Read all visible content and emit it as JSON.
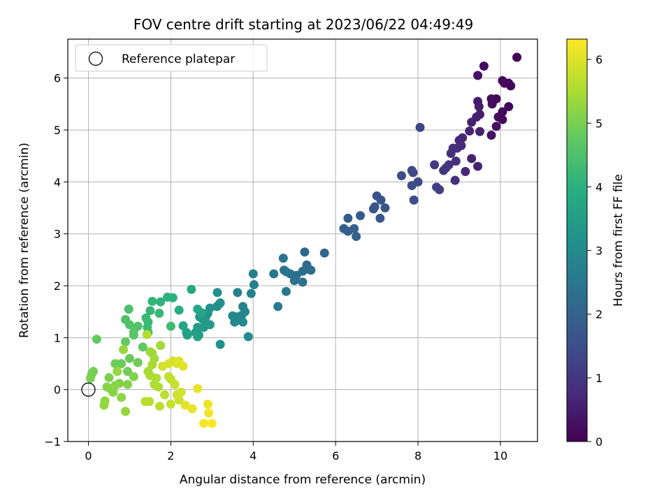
{
  "chart_data": {
    "type": "scatter",
    "title": "FOV centre drift starting at 2023/06/22 04:49:49",
    "xlabel": "Angular distance from reference (arcmin)",
    "ylabel": "Rotation from reference (arcmin)",
    "xlim": [
      -0.5,
      10.9
    ],
    "ylim": [
      -1.0,
      6.75
    ],
    "xticks": [
      0,
      2,
      4,
      6,
      8,
      10
    ],
    "yticks": [
      -1,
      0,
      1,
      2,
      3,
      4,
      5,
      6
    ],
    "grid": true,
    "legend": {
      "position": "top-left",
      "entries": [
        "Reference platepar"
      ]
    },
    "reference_point": {
      "x": 0,
      "y": 0
    },
    "colorbar": {
      "label": "Hours from first FF file",
      "colormap": "viridis",
      "range": [
        0,
        6.32
      ],
      "ticks": [
        0,
        1,
        2,
        3,
        4,
        5,
        6
      ]
    },
    "points": [
      {
        "x": 10.4,
        "y": 6.4,
        "c": 0.05
      },
      {
        "x": 10.2,
        "y": 5.9,
        "c": 0.1
      },
      {
        "x": 10.25,
        "y": 5.85,
        "c": 0.1
      },
      {
        "x": 10.05,
        "y": 5.95,
        "c": 0.1
      },
      {
        "x": 10.1,
        "y": 5.9,
        "c": 0.15
      },
      {
        "x": 9.6,
        "y": 6.23,
        "c": 0.2
      },
      {
        "x": 9.45,
        "y": 6.05,
        "c": 0.3
      },
      {
        "x": 9.9,
        "y": 5.6,
        "c": 0.15
      },
      {
        "x": 9.78,
        "y": 5.6,
        "c": 0.2
      },
      {
        "x": 9.8,
        "y": 5.5,
        "c": 0.2
      },
      {
        "x": 10.2,
        "y": 5.45,
        "c": 0.1
      },
      {
        "x": 10.05,
        "y": 5.35,
        "c": 0.15
      },
      {
        "x": 9.95,
        "y": 5.25,
        "c": 0.2
      },
      {
        "x": 10.05,
        "y": 5.2,
        "c": 0.15
      },
      {
        "x": 9.9,
        "y": 5.07,
        "c": 0.25
      },
      {
        "x": 9.78,
        "y": 4.9,
        "c": 0.3
      },
      {
        "x": 9.45,
        "y": 5.55,
        "c": 0.5
      },
      {
        "x": 9.48,
        "y": 5.45,
        "c": 0.5
      },
      {
        "x": 9.5,
        "y": 5.3,
        "c": 0.55
      },
      {
        "x": 9.42,
        "y": 5.25,
        "c": 0.55
      },
      {
        "x": 9.3,
        "y": 5.15,
        "c": 0.6
      },
      {
        "x": 9.5,
        "y": 4.97,
        "c": 0.6
      },
      {
        "x": 9.25,
        "y": 4.98,
        "c": 0.65
      },
      {
        "x": 9.08,
        "y": 4.85,
        "c": 0.7
      },
      {
        "x": 9.0,
        "y": 4.8,
        "c": 0.7
      },
      {
        "x": 9.05,
        "y": 4.7,
        "c": 0.75
      },
      {
        "x": 8.95,
        "y": 4.65,
        "c": 0.8
      },
      {
        "x": 8.85,
        "y": 4.65,
        "c": 0.85
      },
      {
        "x": 8.8,
        "y": 4.55,
        "c": 0.85
      },
      {
        "x": 8.92,
        "y": 4.4,
        "c": 0.9
      },
      {
        "x": 8.9,
        "y": 4.03,
        "c": 0.9
      },
      {
        "x": 8.75,
        "y": 4.33,
        "c": 0.95
      },
      {
        "x": 8.68,
        "y": 4.27,
        "c": 1.0
      },
      {
        "x": 8.62,
        "y": 4.22,
        "c": 1.0
      },
      {
        "x": 9.3,
        "y": 4.45,
        "c": 0.6
      },
      {
        "x": 9.45,
        "y": 4.3,
        "c": 0.65
      },
      {
        "x": 9.15,
        "y": 4.2,
        "c": 0.7
      },
      {
        "x": 8.4,
        "y": 4.33,
        "c": 1.1
      },
      {
        "x": 8.45,
        "y": 3.9,
        "c": 1.2
      },
      {
        "x": 8.52,
        "y": 3.85,
        "c": 1.2
      },
      {
        "x": 8.05,
        "y": 5.05,
        "c": 1.3
      },
      {
        "x": 7.85,
        "y": 4.22,
        "c": 1.4
      },
      {
        "x": 7.88,
        "y": 4.18,
        "c": 1.4
      },
      {
        "x": 7.6,
        "y": 4.12,
        "c": 1.45
      },
      {
        "x": 8.0,
        "y": 4.0,
        "c": 1.4
      },
      {
        "x": 7.85,
        "y": 3.93,
        "c": 1.45
      },
      {
        "x": 7.9,
        "y": 3.65,
        "c": 1.5
      },
      {
        "x": 7.0,
        "y": 3.73,
        "c": 1.6
      },
      {
        "x": 7.1,
        "y": 3.65,
        "c": 1.65
      },
      {
        "x": 6.95,
        "y": 3.52,
        "c": 1.65
      },
      {
        "x": 6.92,
        "y": 3.48,
        "c": 1.7
      },
      {
        "x": 7.2,
        "y": 3.5,
        "c": 1.7
      },
      {
        "x": 7.08,
        "y": 3.3,
        "c": 1.75
      },
      {
        "x": 6.6,
        "y": 3.35,
        "c": 1.8
      },
      {
        "x": 6.3,
        "y": 3.3,
        "c": 1.85
      },
      {
        "x": 6.2,
        "y": 3.1,
        "c": 1.9
      },
      {
        "x": 6.3,
        "y": 3.05,
        "c": 1.9
      },
      {
        "x": 6.45,
        "y": 3.1,
        "c": 1.95
      },
      {
        "x": 6.5,
        "y": 2.95,
        "c": 2.0
      },
      {
        "x": 5.73,
        "y": 2.63,
        "c": 2.1
      },
      {
        "x": 5.25,
        "y": 2.65,
        "c": 2.15
      },
      {
        "x": 5.3,
        "y": 2.4,
        "c": 2.2
      },
      {
        "x": 5.35,
        "y": 2.32,
        "c": 2.2
      },
      {
        "x": 5.4,
        "y": 2.3,
        "c": 2.25
      },
      {
        "x": 5.2,
        "y": 2.28,
        "c": 2.25
      },
      {
        "x": 5.05,
        "y": 2.2,
        "c": 2.3
      },
      {
        "x": 5.0,
        "y": 2.1,
        "c": 2.35
      },
      {
        "x": 5.2,
        "y": 2.07,
        "c": 2.35
      },
      {
        "x": 4.9,
        "y": 2.23,
        "c": 2.4
      },
      {
        "x": 4.75,
        "y": 2.3,
        "c": 2.4
      },
      {
        "x": 4.8,
        "y": 2.27,
        "c": 2.45
      },
      {
        "x": 4.73,
        "y": 2.53,
        "c": 2.45
      },
      {
        "x": 4.5,
        "y": 2.23,
        "c": 2.5
      },
      {
        "x": 4.8,
        "y": 1.89,
        "c": 2.55
      },
      {
        "x": 4.6,
        "y": 1.6,
        "c": 2.6
      },
      {
        "x": 4.0,
        "y": 2.23,
        "c": 2.7
      },
      {
        "x": 4.02,
        "y": 2.02,
        "c": 2.75
      },
      {
        "x": 3.95,
        "y": 1.85,
        "c": 2.75
      },
      {
        "x": 3.62,
        "y": 1.87,
        "c": 2.8
      },
      {
        "x": 3.75,
        "y": 1.6,
        "c": 2.85
      },
      {
        "x": 3.8,
        "y": 1.5,
        "c": 2.85
      },
      {
        "x": 3.72,
        "y": 1.43,
        "c": 2.9
      },
      {
        "x": 3.6,
        "y": 1.4,
        "c": 2.9
      },
      {
        "x": 3.5,
        "y": 1.42,
        "c": 2.95
      },
      {
        "x": 3.55,
        "y": 1.3,
        "c": 2.95
      },
      {
        "x": 3.75,
        "y": 1.3,
        "c": 3.0
      },
      {
        "x": 3.88,
        "y": 1.02,
        "c": 3.05
      },
      {
        "x": 3.2,
        "y": 1.67,
        "c": 3.1
      },
      {
        "x": 3.18,
        "y": 1.65,
        "c": 3.15
      },
      {
        "x": 3.12,
        "y": 1.6,
        "c": 3.15
      },
      {
        "x": 3.13,
        "y": 1.87,
        "c": 3.2
      },
      {
        "x": 2.95,
        "y": 1.57,
        "c": 3.25
      },
      {
        "x": 2.9,
        "y": 1.47,
        "c": 3.3
      },
      {
        "x": 2.85,
        "y": 1.4,
        "c": 3.3
      },
      {
        "x": 2.78,
        "y": 1.35,
        "c": 3.35
      },
      {
        "x": 2.7,
        "y": 1.4,
        "c": 3.4
      },
      {
        "x": 2.95,
        "y": 1.25,
        "c": 3.4
      },
      {
        "x": 2.8,
        "y": 1.2,
        "c": 3.45
      },
      {
        "x": 2.65,
        "y": 1.2,
        "c": 3.5
      },
      {
        "x": 2.6,
        "y": 1.1,
        "c": 3.5
      },
      {
        "x": 2.68,
        "y": 1.05,
        "c": 3.55
      },
      {
        "x": 2.65,
        "y": 1.02,
        "c": 3.6
      },
      {
        "x": 2.38,
        "y": 1.1,
        "c": 3.65
      },
      {
        "x": 2.4,
        "y": 1.05,
        "c": 3.65
      },
      {
        "x": 2.3,
        "y": 1.23,
        "c": 3.7
      },
      {
        "x": 3.2,
        "y": 0.87,
        "c": 3.2
      },
      {
        "x": 2.5,
        "y": 1.93,
        "c": 3.8
      },
      {
        "x": 2.65,
        "y": 1.55,
        "c": 3.75
      },
      {
        "x": 2.75,
        "y": 1.48,
        "c": 3.7
      },
      {
        "x": 2.2,
        "y": 1.53,
        "c": 3.9
      },
      {
        "x": 2.05,
        "y": 1.77,
        "c": 4.0
      },
      {
        "x": 1.92,
        "y": 1.78,
        "c": 4.05
      },
      {
        "x": 1.75,
        "y": 1.69,
        "c": 4.1
      },
      {
        "x": 1.55,
        "y": 1.7,
        "c": 4.15
      },
      {
        "x": 1.5,
        "y": 1.52,
        "c": 4.2
      },
      {
        "x": 1.72,
        "y": 1.47,
        "c": 4.2
      },
      {
        "x": 1.4,
        "y": 1.38,
        "c": 4.25
      },
      {
        "x": 1.45,
        "y": 1.3,
        "c": 4.3
      },
      {
        "x": 1.43,
        "y": 1.2,
        "c": 4.3
      },
      {
        "x": 1.45,
        "y": 1.1,
        "c": 4.35
      },
      {
        "x": 2.0,
        "y": 1.22,
        "c": 4.35
      },
      {
        "x": 0.98,
        "y": 1.55,
        "c": 4.5
      },
      {
        "x": 0.9,
        "y": 1.35,
        "c": 4.55
      },
      {
        "x": 1.0,
        "y": 1.25,
        "c": 4.6
      },
      {
        "x": 1.2,
        "y": 1.22,
        "c": 4.6
      },
      {
        "x": 1.1,
        "y": 1.1,
        "c": 4.65
      },
      {
        "x": 1.1,
        "y": 1.05,
        "c": 4.7
      },
      {
        "x": 1.32,
        "y": 0.82,
        "c": 4.75
      },
      {
        "x": 0.9,
        "y": 0.92,
        "c": 4.8
      },
      {
        "x": 0.2,
        "y": 0.97,
        "c": 4.8
      },
      {
        "x": 1.0,
        "y": 0.6,
        "c": 4.85
      },
      {
        "x": 0.8,
        "y": 0.5,
        "c": 4.9
      },
      {
        "x": 0.65,
        "y": 0.5,
        "c": 4.9
      },
      {
        "x": 1.2,
        "y": 0.52,
        "c": 4.95
      },
      {
        "x": 0.95,
        "y": 0.35,
        "c": 4.95
      },
      {
        "x": 0.12,
        "y": 0.35,
        "c": 5.0
      },
      {
        "x": 0.08,
        "y": 0.3,
        "c": 5.0
      },
      {
        "x": 0.05,
        "y": 0.22,
        "c": 5.05
      },
      {
        "x": 0.5,
        "y": 0.23,
        "c": 5.05
      },
      {
        "x": 1.1,
        "y": 0.25,
        "c": 5.1
      },
      {
        "x": 0.75,
        "y": 0.12,
        "c": 5.1
      },
      {
        "x": 0.95,
        "y": 0.1,
        "c": 5.15
      },
      {
        "x": 0.45,
        "y": 0.05,
        "c": 5.15
      },
      {
        "x": 0.55,
        "y": 0.0,
        "c": 5.2
      },
      {
        "x": 0.6,
        "y": -0.05,
        "c": 5.2
      },
      {
        "x": 0.65,
        "y": 0.08,
        "c": 5.2
      },
      {
        "x": 0.8,
        "y": -0.15,
        "c": 5.25
      },
      {
        "x": 0.4,
        "y": -0.22,
        "c": 5.25
      },
      {
        "x": 0.38,
        "y": -0.3,
        "c": 5.3
      },
      {
        "x": 0.9,
        "y": -0.42,
        "c": 5.3
      },
      {
        "x": 0.85,
        "y": 0.77,
        "c": 5.35
      },
      {
        "x": 0.7,
        "y": 0.35,
        "c": 5.35
      },
      {
        "x": 1.5,
        "y": 0.73,
        "c": 5.4
      },
      {
        "x": 1.55,
        "y": 0.7,
        "c": 5.4
      },
      {
        "x": 1.75,
        "y": 0.85,
        "c": 5.45
      },
      {
        "x": 1.6,
        "y": 0.6,
        "c": 5.45
      },
      {
        "x": 1.55,
        "y": 0.48,
        "c": 5.5
      },
      {
        "x": 1.45,
        "y": 0.35,
        "c": 5.5
      },
      {
        "x": 1.5,
        "y": 0.27,
        "c": 5.55
      },
      {
        "x": 1.6,
        "y": 0.1,
        "c": 5.55
      },
      {
        "x": 1.65,
        "y": 0.22,
        "c": 5.6
      },
      {
        "x": 1.7,
        "y": 0.05,
        "c": 5.6
      },
      {
        "x": 1.38,
        "y": -0.23,
        "c": 5.65
      },
      {
        "x": 1.48,
        "y": -0.23,
        "c": 5.65
      },
      {
        "x": 1.73,
        "y": -0.32,
        "c": 5.7
      },
      {
        "x": 1.85,
        "y": -0.1,
        "c": 5.7
      },
      {
        "x": 1.95,
        "y": 0.25,
        "c": 5.75
      },
      {
        "x": 2.0,
        "y": 0.2,
        "c": 5.75
      },
      {
        "x": 2.1,
        "y": 0.1,
        "c": 5.8
      },
      {
        "x": 2.0,
        "y": -0.28,
        "c": 5.8
      },
      {
        "x": 2.2,
        "y": -0.2,
        "c": 5.85
      },
      {
        "x": 2.15,
        "y": -0.1,
        "c": 5.85
      },
      {
        "x": 2.25,
        "y": -0.05,
        "c": 5.9
      },
      {
        "x": 1.8,
        "y": 0.45,
        "c": 5.9
      },
      {
        "x": 1.95,
        "y": 0.5,
        "c": 5.95
      },
      {
        "x": 2.05,
        "y": 0.55,
        "c": 5.95
      },
      {
        "x": 2.15,
        "y": 0.5,
        "c": 6.0
      },
      {
        "x": 2.2,
        "y": 0.55,
        "c": 6.0
      },
      {
        "x": 2.3,
        "y": 0.45,
        "c": 6.05
      },
      {
        "x": 2.35,
        "y": -0.3,
        "c": 6.05
      },
      {
        "x": 2.52,
        "y": -0.37,
        "c": 6.1
      },
      {
        "x": 2.65,
        "y": 0.02,
        "c": 6.1
      },
      {
        "x": 2.9,
        "y": -0.28,
        "c": 6.15
      },
      {
        "x": 2.92,
        "y": -0.45,
        "c": 6.2
      },
      {
        "x": 2.8,
        "y": -0.65,
        "c": 6.25
      },
      {
        "x": 3.0,
        "y": -0.65,
        "c": 6.3
      },
      {
        "x": 1.42,
        "y": 1.06,
        "c": 5.6
      }
    ]
  }
}
